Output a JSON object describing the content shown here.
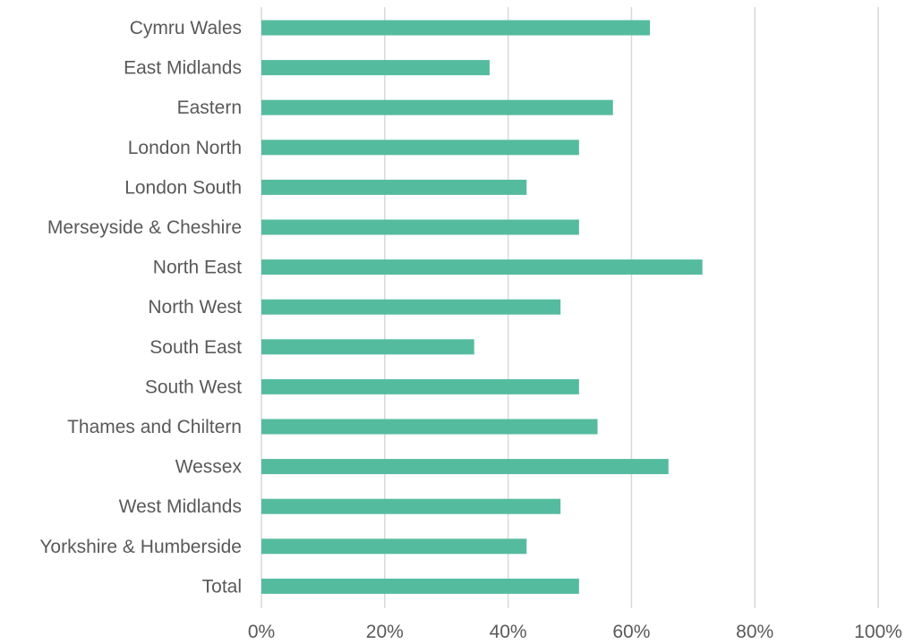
{
  "chart_data": {
    "type": "bar",
    "orientation": "horizontal",
    "title": "",
    "xlabel": "",
    "ylabel": "",
    "categories": [
      "Cymru Wales",
      "East Midlands",
      "Eastern",
      "London North",
      "London South",
      "Merseyside & Cheshire",
      "North East",
      "North West",
      "South East",
      "South West",
      "Thames and Chiltern",
      "Wessex",
      "West Midlands",
      "Yorkshire & Humberside",
      "Total"
    ],
    "series": [
      {
        "values": [
          63,
          37,
          57,
          51.5,
          43,
          51.5,
          71.5,
          48.5,
          34.5,
          51.5,
          54.5,
          66,
          48.5,
          43,
          51.5
        ],
        "color": "#55bb9f"
      }
    ],
    "xlim": [
      0,
      100
    ],
    "x_ticks": [
      0,
      20,
      40,
      60,
      80,
      100
    ],
    "x_tick_labels": [
      "0%",
      "20%",
      "40%",
      "60%",
      "80%",
      "100%"
    ],
    "grid": "vertical",
    "legend": "none"
  }
}
